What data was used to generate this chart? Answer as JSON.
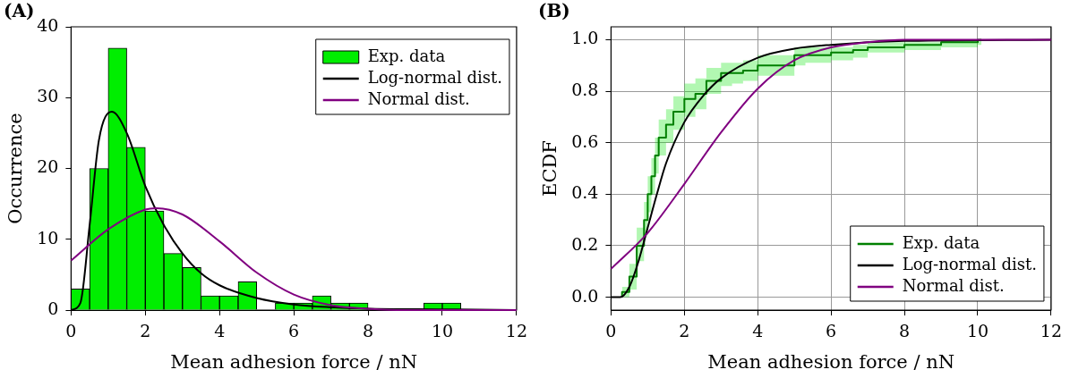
{
  "chart_data": [
    {
      "type": "histogram",
      "title": "(A)",
      "xlabel": "Mean adhesion force / nN",
      "ylabel": "Occurrence",
      "xlim": [
        0,
        12
      ],
      "xticks": [
        0,
        2,
        4,
        6,
        8,
        10,
        12
      ],
      "ylim": [
        0,
        40
      ],
      "yticks": [
        0,
        10,
        20,
        30,
        40
      ],
      "legend": "top right",
      "bins": [
        0,
        0.5,
        1,
        1.5,
        2,
        2.5,
        3,
        3.5,
        4,
        4.5,
        5,
        5.5,
        6,
        6.5,
        7,
        7.5,
        8,
        8.5,
        9,
        9.5,
        10,
        10.5
      ],
      "series": [
        {
          "name": "Exp. data",
          "color": "#00ee00",
          "values": [
            3,
            20,
            37,
            23,
            14,
            8,
            6,
            2,
            2,
            4,
            0,
            1,
            1,
            2,
            1,
            1,
            0,
            0,
            0,
            1,
            1
          ]
        },
        {
          "type": "line",
          "name": "Log-normal dist.",
          "color": "#000000",
          "x": [
            0,
            0.25,
            0.5,
            0.75,
            1.1,
            1.5,
            2,
            2.5,
            3,
            3.5,
            4,
            5,
            6,
            7,
            8,
            10,
            12
          ],
          "values": [
            0,
            1,
            12,
            24,
            28,
            25,
            17.5,
            12,
            8,
            5.2,
            3.5,
            1.7,
            0.8,
            0.4,
            0.2,
            0.1,
            0
          ]
        },
        {
          "type": "line",
          "name": "Normal dist.",
          "color": "#800080",
          "x": [
            0,
            1,
            2,
            2.3,
            3,
            4,
            5,
            6,
            7,
            8,
            9,
            10,
            12
          ],
          "values": [
            7,
            11.4,
            14.2,
            14.4,
            13.5,
            9.7,
            5.3,
            2.2,
            0.7,
            0.2,
            0,
            0,
            0
          ]
        }
      ]
    },
    {
      "type": "line",
      "title": "(B)",
      "xlabel": "Mean adhesion force / nN",
      "ylabel": "ECDF",
      "xlim": [
        0,
        12
      ],
      "xticks": [
        0,
        2,
        4,
        6,
        8,
        10,
        12
      ],
      "ylim": [
        -0.05,
        1.05
      ],
      "yticks": [
        {
          "value": 0,
          "label": "0.0"
        },
        {
          "value": 0.2,
          "label": "0.2"
        },
        {
          "value": 0.4,
          "label": "0.4"
        },
        {
          "value": 0.6,
          "label": "0.6"
        },
        {
          "value": 0.8,
          "label": "0.8"
        },
        {
          "value": 1,
          "label": "1.0"
        }
      ],
      "grid": true,
      "legend": "bottom right",
      "series": [
        {
          "type": "step",
          "name": "Exp. data",
          "color": "#008000",
          "x": [
            0.3,
            0.5,
            0.7,
            0.9,
            1.0,
            1.1,
            1.2,
            1.3,
            1.5,
            1.7,
            2.0,
            2.3,
            2.6,
            3.0,
            3.3,
            3.6,
            4.0,
            5.0,
            5.3,
            6.0,
            6.6,
            7.0,
            8.0,
            9.0,
            10.0,
            10.1
          ],
          "values": [
            0,
            0.02,
            0.08,
            0.2,
            0.3,
            0.4,
            0.47,
            0.55,
            0.62,
            0.67,
            0.72,
            0.77,
            0.79,
            0.84,
            0.87,
            0.87,
            0.88,
            0.9,
            0.94,
            0.94,
            0.95,
            0.96,
            0.97,
            0.98,
            0.99,
            1.0
          ],
          "lower": [
            0,
            0,
            0.03,
            0.14,
            0.24,
            0.33,
            0.4,
            0.48,
            0.55,
            0.6,
            0.65,
            0.7,
            0.73,
            0.79,
            0.82,
            0.83,
            0.84,
            0.86,
            0.9,
            0.91,
            0.92,
            0.93,
            0.95,
            0.96,
            0.97,
            0.98
          ],
          "upper": [
            0.01,
            0.04,
            0.13,
            0.27,
            0.37,
            0.47,
            0.54,
            0.62,
            0.69,
            0.73,
            0.78,
            0.83,
            0.85,
            0.89,
            0.91,
            0.91,
            0.92,
            0.94,
            0.97,
            0.97,
            0.97,
            0.98,
            0.99,
            0.99,
            1.0,
            1.0
          ]
        },
        {
          "name": "Log-normal dist.",
          "color": "#000000",
          "x": [
            0,
            0.25,
            0.5,
            0.75,
            1,
            1.25,
            1.5,
            2,
            2.5,
            3,
            4,
            5,
            6,
            8,
            12
          ],
          "values": [
            0,
            0,
            0.04,
            0.14,
            0.27,
            0.4,
            0.52,
            0.68,
            0.78,
            0.85,
            0.93,
            0.965,
            0.98,
            0.995,
            1
          ]
        },
        {
          "name": "Normal dist.",
          "color": "#800080",
          "x": [
            0,
            1,
            2,
            3,
            4,
            5,
            6,
            7,
            8,
            12
          ],
          "values": [
            0.11,
            0.25,
            0.44,
            0.64,
            0.81,
            0.92,
            0.97,
            0.99,
            1,
            1
          ]
        }
      ]
    }
  ]
}
